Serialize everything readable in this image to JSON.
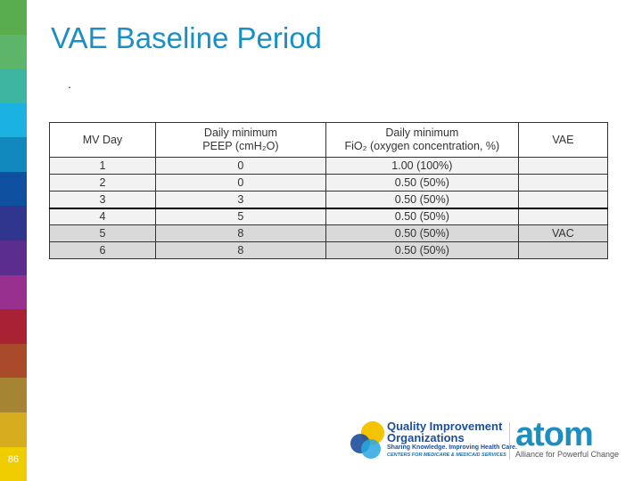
{
  "sidebar": {
    "stripe_colors": [
      "#5aad4e",
      "#5db56a",
      "#3cb6a0",
      "#1bb1e0",
      "#1189bf",
      "#0f4fa0",
      "#30358e",
      "#5b2d8c",
      "#97308e",
      "#a82233",
      "#a94a2a",
      "#a58533",
      "#d4ac1e",
      "#f0cd00"
    ],
    "page_number": "86"
  },
  "title": "VAE Baseline Period",
  "bullet": ".",
  "table": {
    "headers": [
      [
        "MV Day"
      ],
      [
        "Daily minimum",
        "PEEP (cmH₂O)"
      ],
      [
        "Daily minimum",
        "FiO₂ (oxygen concentration, %)"
      ],
      [
        "VAE"
      ]
    ],
    "rows": [
      [
        "1",
        "0",
        "1.00 (100%)",
        ""
      ],
      [
        "2",
        "0",
        "0.50 (50%)",
        ""
      ],
      [
        "3",
        "3",
        "0.50 (50%)",
        ""
      ],
      [
        "4",
        "5",
        "0.50 (50%)",
        ""
      ],
      [
        "5",
        "8",
        "0.50 (50%)",
        "VAC"
      ],
      [
        "6",
        "8",
        "0.50 (50%)",
        ""
      ]
    ]
  },
  "logos": {
    "qio_line1": "Quality Improvement",
    "qio_line2": "Organizations",
    "qio_tagline": "Sharing Knowledge. Improving Health Care.",
    "qio_cms": "CENTERS FOR MEDICARE & MEDICAID SERVICES",
    "atom": "atom",
    "atom_tagline": "Alliance for Powerful Change"
  }
}
